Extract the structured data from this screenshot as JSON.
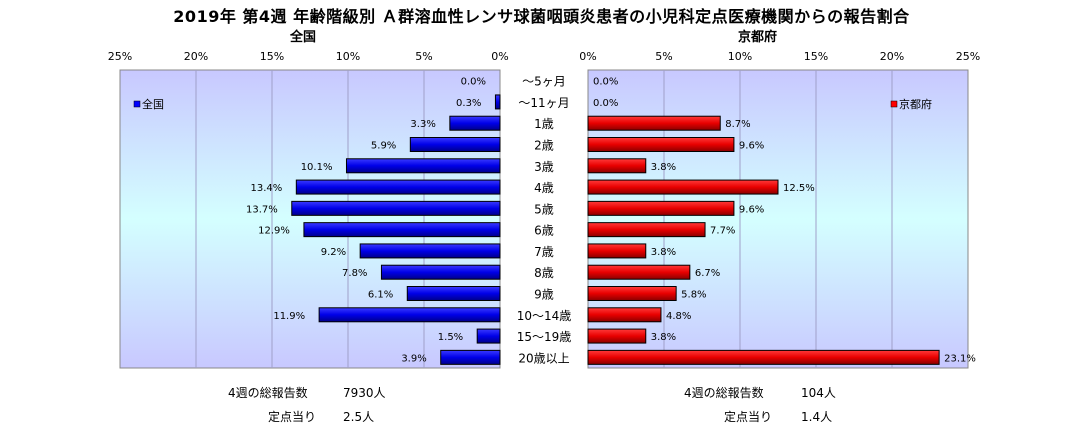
{
  "title": "2019年 第4週 年齢階級別 Ａ群溶血性レンサ球菌咽頭炎患者の小児科定点医療機関からの報告割合",
  "left_panel": {
    "region": "全国",
    "legend": "全国",
    "color": "#0000ff",
    "totals_label": "4週の総報告数",
    "totals_value": "7930人",
    "per_site_label": "定点当り",
    "per_site_value": "2.5人"
  },
  "right_panel": {
    "region": "京都府",
    "legend": "京都府",
    "color": "#ff0000",
    "totals_label": "4週の総報告数",
    "totals_value": "104人",
    "per_site_label": "定点当り",
    "per_site_value": "1.4人"
  },
  "chart_data": {
    "type": "bar",
    "orientation": "horizontal-butterfly",
    "categories": [
      "～5ヶ月",
      "～11ヶ月",
      "1歳",
      "2歳",
      "3歳",
      "4歳",
      "5歳",
      "6歳",
      "7歳",
      "8歳",
      "9歳",
      "10～14歳",
      "15～19歳",
      "20歳以上"
    ],
    "series": [
      {
        "name": "全国",
        "values": [
          0.0,
          0.3,
          3.3,
          5.9,
          10.1,
          13.4,
          13.7,
          12.9,
          9.2,
          7.8,
          6.1,
          11.9,
          1.5,
          3.9
        ],
        "labels": [
          "0.0%",
          "0.3%",
          "3.3%",
          "5.9%",
          "10.1%",
          "13.4%",
          "13.7%",
          "12.9%",
          "9.2%",
          "7.8%",
          "6.1%",
          "11.9%",
          "1.5%",
          "3.9%"
        ]
      },
      {
        "name": "京都府",
        "values": [
          0.0,
          0.0,
          8.7,
          9.6,
          3.8,
          12.5,
          9.6,
          7.7,
          3.8,
          6.7,
          5.8,
          4.8,
          3.8,
          23.1
        ],
        "labels": [
          "0.0%",
          "0.0%",
          "8.7%",
          "9.6%",
          "3.8%",
          "12.5%",
          "9.6%",
          "7.7%",
          "3.8%",
          "6.7%",
          "5.8%",
          "4.8%",
          "3.8%",
          "23.1%"
        ]
      }
    ],
    "ticks": [
      0,
      5,
      10,
      15,
      20,
      25
    ],
    "tick_labels": [
      "0%",
      "5%",
      "10%",
      "15%",
      "20%",
      "25%"
    ],
    "xlim": [
      0,
      25
    ],
    "legend_position": "top-left / top-right",
    "grid": true
  }
}
